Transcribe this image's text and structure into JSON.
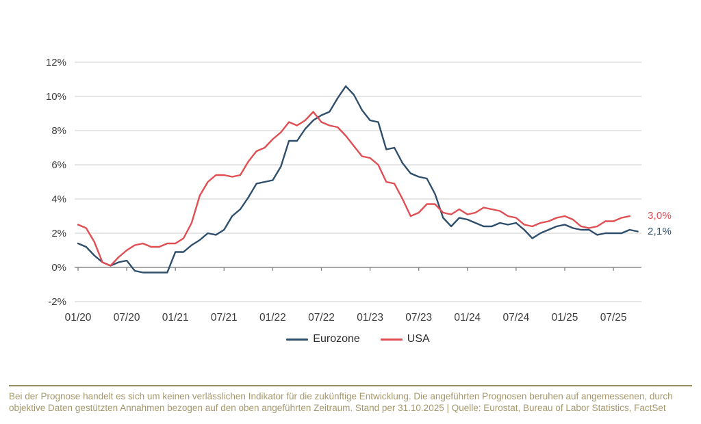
{
  "chart_data": {
    "type": "line",
    "title": "",
    "xlabel": "",
    "ylabel": "",
    "x_unit": "month",
    "x_start": "01/2020",
    "x_tick_labels": [
      "01/20",
      "07/20",
      "01/21",
      "07/21",
      "01/22",
      "07/22",
      "01/23",
      "07/23",
      "01/24",
      "07/24",
      "01/25",
      "07/25"
    ],
    "x_tick_interval_months": 6,
    "ylim": [
      -2,
      12
    ],
    "y_ticks": [
      -2,
      0,
      2,
      4,
      6,
      8,
      10,
      12
    ],
    "y_tick_labels": [
      "-2%",
      "0%",
      "2%",
      "4%",
      "6%",
      "8%",
      "10%",
      "12%"
    ],
    "grid": true,
    "legend_position": "bottom",
    "series": [
      {
        "name": "Eurozone",
        "color": "#2e4e6b",
        "end_label": "2,1%",
        "values": [
          1.4,
          1.2,
          0.7,
          0.3,
          0.1,
          0.3,
          0.4,
          -0.2,
          -0.3,
          -0.3,
          -0.3,
          -0.3,
          0.9,
          0.9,
          1.3,
          1.6,
          2.0,
          1.9,
          2.2,
          3.0,
          3.4,
          4.1,
          4.9,
          5.0,
          5.1,
          5.9,
          7.4,
          7.4,
          8.1,
          8.6,
          8.9,
          9.1,
          9.9,
          10.6,
          10.1,
          9.2,
          8.6,
          8.5,
          6.9,
          7.0,
          6.1,
          5.5,
          5.3,
          5.2,
          4.3,
          2.9,
          2.4,
          2.9,
          2.8,
          2.6,
          2.4,
          2.4,
          2.6,
          2.5,
          2.6,
          2.2,
          1.7,
          2.0,
          2.2,
          2.4,
          2.5,
          2.3,
          2.2,
          2.2,
          1.9,
          2.0,
          2.0,
          2.0,
          2.2,
          2.1
        ]
      },
      {
        "name": "USA",
        "color": "#e04d52",
        "end_label": "3,0%",
        "values": [
          2.5,
          2.3,
          1.5,
          0.3,
          0.1,
          0.6,
          1.0,
          1.3,
          1.4,
          1.2,
          1.2,
          1.4,
          1.4,
          1.7,
          2.6,
          4.2,
          5.0,
          5.4,
          5.4,
          5.3,
          5.4,
          6.2,
          6.8,
          7.0,
          7.5,
          7.9,
          8.5,
          8.3,
          8.6,
          9.1,
          8.5,
          8.3,
          8.2,
          7.7,
          7.1,
          6.5,
          6.4,
          6.0,
          5.0,
          4.9,
          4.0,
          3.0,
          3.2,
          3.7,
          3.7,
          3.2,
          3.1,
          3.4,
          3.1,
          3.2,
          3.5,
          3.4,
          3.3,
          3.0,
          2.9,
          2.5,
          2.4,
          2.6,
          2.7,
          2.9,
          3.0,
          2.8,
          2.4,
          2.3,
          2.4,
          2.7,
          2.7,
          2.9,
          3.0
        ]
      }
    ],
    "colors": {
      "gridline": "#cccccc",
      "axis_line": "#8a8a8a",
      "tick_text": "#3b3b3b"
    }
  },
  "legend": {
    "items": [
      {
        "label": "Eurozone",
        "color": "#2e4e6b"
      },
      {
        "label": "USA",
        "color": "#e04d52"
      }
    ]
  },
  "footer": {
    "color": "#a5976c",
    "rule_color": "#998b60",
    "lines": [
      "Bei der Prognose handelt es sich um keinen verlässlichen Indikator für die zukünftige Entwicklung. Die angeführten Prognosen beruhen auf angemessenen, durch",
      "objektive Daten gestützten Annahmen bezogen auf den oben angeführten Zeitraum. Stand per 31.10.2025 | Quelle: Eurostat, Bureau of Labor Statistics, FactSet"
    ]
  }
}
